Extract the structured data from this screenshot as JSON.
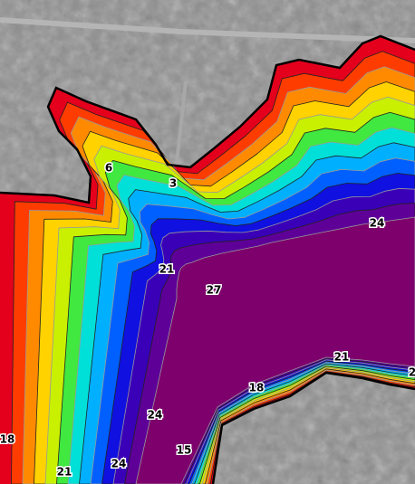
{
  "contour_labels": [
    "6",
    "3",
    "24",
    "21",
    "27",
    "21",
    "18",
    "24",
    "15",
    "18",
    "21",
    "24",
    "2"
  ]
}
